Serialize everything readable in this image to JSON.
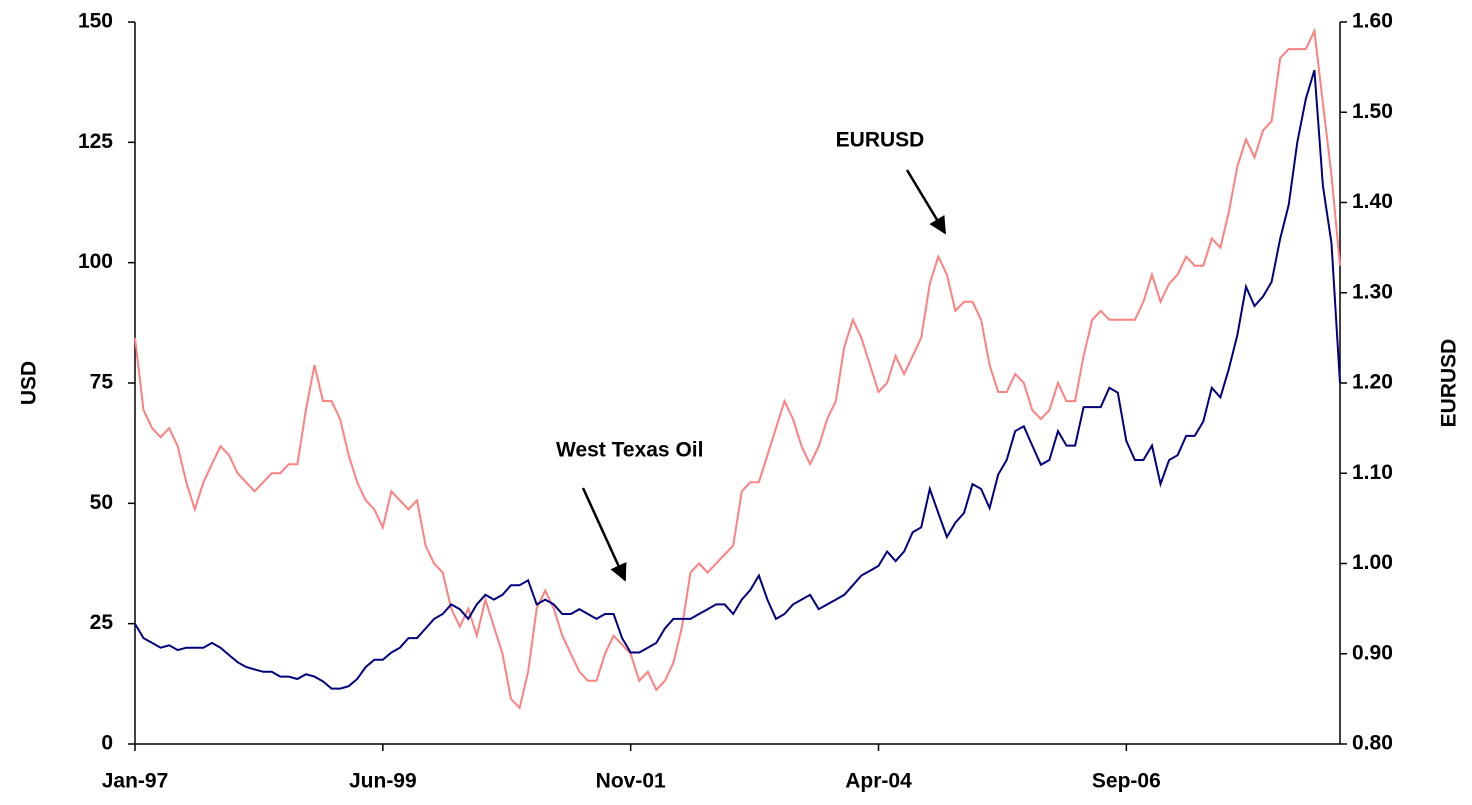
{
  "chart_data": {
    "type": "line",
    "x": [
      "Jan-97",
      "Feb-97",
      "Mar-97",
      "Apr-97",
      "May-97",
      "Jun-97",
      "Jul-97",
      "Aug-97",
      "Sep-97",
      "Oct-97",
      "Nov-97",
      "Dec-97",
      "Jan-98",
      "Feb-98",
      "Mar-98",
      "Apr-98",
      "May-98",
      "Jun-98",
      "Jul-98",
      "Aug-98",
      "Sep-98",
      "Oct-98",
      "Nov-98",
      "Dec-98",
      "Jan-99",
      "Feb-99",
      "Mar-99",
      "Apr-99",
      "May-99",
      "Jun-99",
      "Jul-99",
      "Aug-99",
      "Sep-99",
      "Oct-99",
      "Nov-99",
      "Dec-99",
      "Jan-00",
      "Feb-00",
      "Mar-00",
      "Apr-00",
      "May-00",
      "Jun-00",
      "Jul-00",
      "Aug-00",
      "Sep-00",
      "Oct-00",
      "Nov-00",
      "Dec-00",
      "Jan-01",
      "Feb-01",
      "Mar-01",
      "Apr-01",
      "May-01",
      "Jun-01",
      "Jul-01",
      "Aug-01",
      "Sep-01",
      "Oct-01",
      "Nov-01",
      "Dec-01",
      "Jan-02",
      "Feb-02",
      "Mar-02",
      "Apr-02",
      "May-02",
      "Jun-02",
      "Jul-02",
      "Aug-02",
      "Sep-02",
      "Oct-02",
      "Nov-02",
      "Dec-02",
      "Jan-03",
      "Feb-03",
      "Mar-03",
      "Apr-03",
      "May-03",
      "Jun-03",
      "Jul-03",
      "Aug-03",
      "Sep-03",
      "Oct-03",
      "Nov-03",
      "Dec-03",
      "Jan-04",
      "Feb-04",
      "Mar-04",
      "Apr-04",
      "May-04",
      "Jun-04",
      "Jul-04",
      "Aug-04",
      "Sep-04",
      "Oct-04",
      "Nov-04",
      "Dec-04",
      "Jan-05",
      "Feb-05",
      "Mar-05",
      "Apr-05",
      "May-05",
      "Jun-05",
      "Jul-05",
      "Aug-05",
      "Sep-05",
      "Oct-05",
      "Nov-05",
      "Dec-05",
      "Jan-06",
      "Feb-06",
      "Mar-06",
      "Apr-06",
      "May-06",
      "Jun-06",
      "Jul-06",
      "Aug-06",
      "Sep-06",
      "Oct-06",
      "Nov-06",
      "Dec-06",
      "Jan-07",
      "Feb-07",
      "Mar-07",
      "Apr-07",
      "May-07",
      "Jun-07",
      "Jul-07",
      "Aug-07",
      "Sep-07",
      "Oct-07",
      "Nov-07",
      "Dec-07",
      "Jan-08",
      "Feb-08",
      "Mar-08",
      "Apr-08",
      "May-08",
      "Jun-08",
      "Jul-08",
      "Aug-08",
      "Sep-08",
      "Oct-08"
    ],
    "xticks": [
      "Jan-97",
      "Jun-99",
      "Nov-01",
      "Apr-04",
      "Sep-06"
    ],
    "ylabel": "USD",
    "y2label": "EURUSD",
    "ylim": [
      0,
      150
    ],
    "yticks": [
      0,
      25,
      50,
      75,
      100,
      125,
      150
    ],
    "y2lim": [
      0.8,
      1.6
    ],
    "y2ticks": [
      {
        "value": 0.8,
        "label": "0.80"
      },
      {
        "value": 0.9,
        "label": "0.90"
      },
      {
        "value": 1.0,
        "label": "1.00"
      },
      {
        "value": 1.1,
        "label": "1.10"
      },
      {
        "value": 1.2,
        "label": "1.20"
      },
      {
        "value": 1.3,
        "label": "1.30"
      },
      {
        "value": 1.4,
        "label": "1.40"
      },
      {
        "value": 1.5,
        "label": "1.50"
      },
      {
        "value": 1.6,
        "label": "1.60"
      }
    ],
    "annotations": [
      "West Texas Oil",
      "EURUSD"
    ],
    "series": [
      {
        "name": "West Texas Oil",
        "color": "#000080",
        "values": [
          25,
          22,
          21,
          20,
          20.5,
          19.5,
          20,
          20,
          20,
          21,
          20,
          18.5,
          17,
          16,
          15.5,
          15,
          15,
          14,
          14,
          13.5,
          14.5,
          14,
          13,
          11.5,
          11.5,
          12,
          13.5,
          16,
          17.5,
          17.5,
          19,
          20,
          22,
          22,
          24,
          26,
          27,
          29,
          28,
          26,
          29,
          31,
          30,
          31,
          33,
          33,
          34,
          29,
          30,
          29,
          27,
          27,
          28,
          27,
          26,
          27,
          27,
          22,
          19,
          19,
          20,
          21,
          24,
          26,
          26,
          26,
          27,
          28,
          29,
          29,
          27,
          30,
          32,
          35,
          30,
          26,
          27,
          29,
          30,
          31,
          28,
          29,
          30,
          31,
          33,
          35,
          36,
          37,
          40,
          38,
          40,
          44,
          45,
          53,
          48,
          43,
          46,
          48,
          54,
          53,
          49,
          56,
          59,
          65,
          66,
          62,
          58,
          59,
          65,
          62,
          62,
          70,
          70,
          70,
          74,
          73,
          63,
          59,
          59,
          62,
          54,
          59,
          60,
          64,
          64,
          67,
          74,
          72,
          78,
          85,
          95,
          91,
          93,
          96,
          105,
          112,
          125,
          134,
          140,
          116,
          104,
          75
        ]
      },
      {
        "name": "EURUSD",
        "color": "#ff8080",
        "axis": "y2",
        "values": [
          1.25,
          1.17,
          1.15,
          1.14,
          1.15,
          1.13,
          1.09,
          1.06,
          1.09,
          1.11,
          1.13,
          1.12,
          1.1,
          1.09,
          1.08,
          1.09,
          1.1,
          1.1,
          1.11,
          1.11,
          1.17,
          1.22,
          1.18,
          1.18,
          1.16,
          1.12,
          1.09,
          1.07,
          1.06,
          1.04,
          1.08,
          1.07,
          1.06,
          1.07,
          1.02,
          1.0,
          0.99,
          0.95,
          0.93,
          0.95,
          0.92,
          0.96,
          0.93,
          0.9,
          0.85,
          0.84,
          0.88,
          0.95,
          0.97,
          0.95,
          0.92,
          0.9,
          0.88,
          0.87,
          0.87,
          0.9,
          0.92,
          0.91,
          0.9,
          0.87,
          0.88,
          0.86,
          0.87,
          0.89,
          0.93,
          0.99,
          1.0,
          0.99,
          1.0,
          1.01,
          1.02,
          1.08,
          1.09,
          1.09,
          1.12,
          1.15,
          1.18,
          1.16,
          1.13,
          1.11,
          1.13,
          1.16,
          1.18,
          1.24,
          1.27,
          1.25,
          1.22,
          1.19,
          1.2,
          1.23,
          1.21,
          1.23,
          1.25,
          1.31,
          1.34,
          1.32,
          1.28,
          1.29,
          1.29,
          1.27,
          1.22,
          1.19,
          1.19,
          1.21,
          1.2,
          1.17,
          1.16,
          1.17,
          1.2,
          1.18,
          1.18,
          1.23,
          1.27,
          1.28,
          1.27,
          1.27,
          1.27,
          1.27,
          1.29,
          1.32,
          1.29,
          1.31,
          1.32,
          1.34,
          1.33,
          1.33,
          1.36,
          1.35,
          1.39,
          1.44,
          1.47,
          1.45,
          1.48,
          1.49,
          1.56,
          1.57,
          1.57,
          1.57,
          1.59,
          1.51,
          1.43,
          1.33
        ]
      }
    ]
  }
}
